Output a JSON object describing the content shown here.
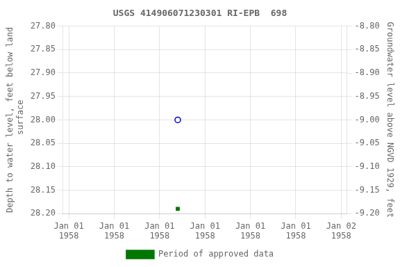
{
  "chart_data": {
    "type": "scatter",
    "title": "USGS 414906071230301 RI-EPB  698",
    "y_label": "Depth to water level, feet below land\n surface",
    "y2_label": "Groundwater level above NGVD 1929, feet",
    "x": [
      9.6
    ],
    "series": [
      {
        "color": "#0000cc",
        "marker": "hollow_circle",
        "values": [
          28.0
        ]
      },
      {
        "name": "Period of approved data",
        "color": "#007700",
        "marker": "square",
        "values": [
          28.19
        ]
      }
    ],
    "xlim": [
      -0.5,
      24.5
    ],
    "xticks": [
      {
        "value": 0,
        "label": "Jan 01\n1958"
      },
      {
        "value": 4,
        "label": "Jan 01\n1958"
      },
      {
        "value": 8,
        "label": "Jan 01\n1958"
      },
      {
        "value": 12,
        "label": "Jan 01\n1958"
      },
      {
        "value": 16,
        "label": "Jan 01\n1958"
      },
      {
        "value": 20,
        "label": "Jan 01\n1958"
      },
      {
        "value": 24,
        "label": "Jan 02\n1958"
      }
    ],
    "ylim": [
      28.2,
      27.8
    ],
    "yticks": [
      {
        "value": 27.8,
        "label": "27.80"
      },
      27.85,
      {
        "value": 27.9,
        "label": "27.90"
      },
      27.95,
      {
        "value": 28.0,
        "label": "28.00"
      },
      28.05,
      {
        "value": 28.1,
        "label": "28.10"
      },
      28.15,
      {
        "value": 28.2,
        "label": "28.20"
      }
    ],
    "y2lim": [
      -9.2,
      -8.8
    ],
    "y2ticks": [
      {
        "value": -8.8,
        "label": "-8.80"
      },
      -8.85,
      {
        "value": -8.9,
        "label": "-8.90"
      },
      -8.95,
      {
        "value": -9.0,
        "label": "-9.00"
      },
      -9.05,
      {
        "value": -9.1,
        "label": "-9.10"
      },
      -9.15,
      {
        "value": -9.2,
        "label": "-9.20"
      }
    ],
    "grid": true,
    "legend": "bottom"
  }
}
